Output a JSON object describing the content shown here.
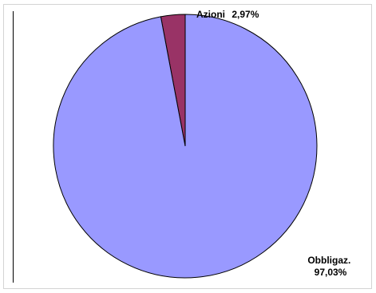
{
  "chart_data": {
    "type": "pie",
    "slices": [
      {
        "label": "Azioni",
        "value": 2.97,
        "value_label": "2,97%",
        "color": "#993366"
      },
      {
        "label": "Obbligaz.",
        "value": 97.03,
        "value_label": "97,03%",
        "color": "#9999FF"
      }
    ],
    "start_angle_deg": 0,
    "direction": "counterclockwise",
    "outline_color": "#000000"
  }
}
